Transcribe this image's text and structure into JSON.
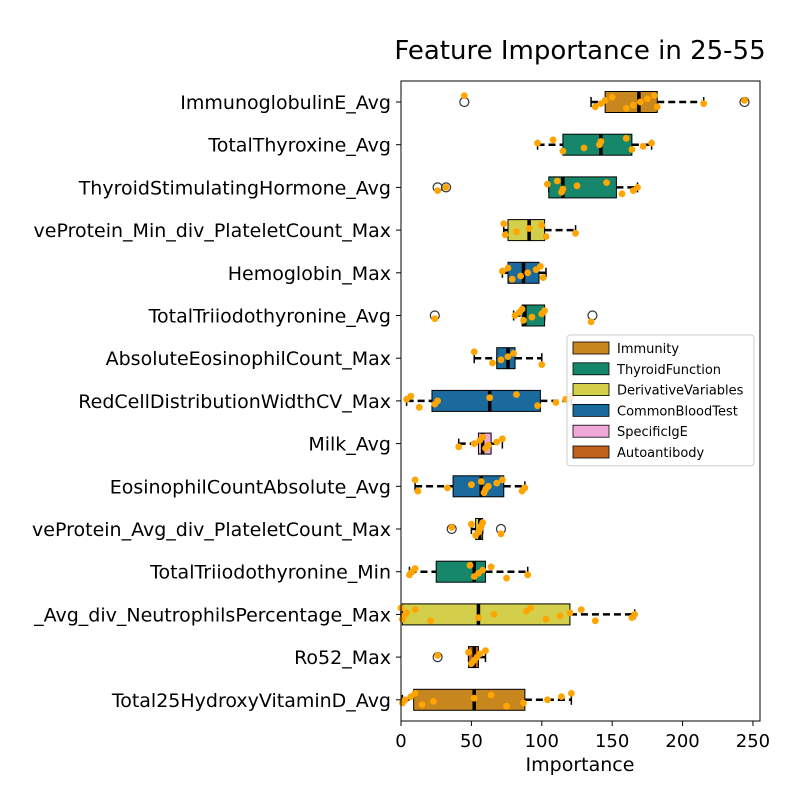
{
  "chart_data": {
    "type": "boxplot",
    "title": "Feature Importance in 25-55",
    "xlabel": "Importance",
    "xlim": [
      0,
      255
    ],
    "xticks": [
      0,
      50,
      100,
      150,
      200,
      250
    ],
    "legend": {
      "placement": "center-right",
      "entries": [
        {
          "label": "Immunity",
          "color": "#c8861f"
        },
        {
          "label": "ThyroidFunction",
          "color": "#16876a"
        },
        {
          "label": "DerivativeVariables",
          "color": "#d4cf4a"
        },
        {
          "label": "CommonBloodTest",
          "color": "#1a6a9e"
        },
        {
          "label": "SpecificIgE",
          "color": "#f0a8d8"
        },
        {
          "label": "Autoantibody",
          "color": "#c0621c"
        }
      ]
    },
    "point_color": "#ffa500",
    "features": [
      {
        "label": "ImmunoglobulinE_Avg",
        "group": "Immunity",
        "whislo": 135,
        "q1": 145,
        "med": 169,
        "q3": 182,
        "whishi": 215,
        "outliers": [
          45,
          244
        ],
        "points": [
          45,
          138,
          142,
          145,
          150,
          160,
          165,
          170,
          175,
          180,
          182,
          215,
          244
        ]
      },
      {
        "label": "TotalThyroxine_Avg",
        "group": "ThyroidFunction",
        "whislo": 97,
        "q1": 115,
        "med": 142,
        "q3": 164,
        "whishi": 178,
        "outliers": [],
        "points": [
          97,
          108,
          115,
          130,
          141,
          142,
          160,
          164,
          172,
          178
        ]
      },
      {
        "label": "ThyroidStimulatingHormone_Avg",
        "group": "ThyroidFunction",
        "whislo": 105,
        "q1": 105,
        "med": 115,
        "q3": 153,
        "whishi": 168,
        "outliers": [
          26,
          32
        ],
        "points": [
          26,
          32,
          104,
          111,
          114,
          115,
          125,
          146,
          157,
          165,
          168
        ]
      },
      {
        "label": "veProtein_Min_div_PlateletCount_Max",
        "group": "DerivativeVariables",
        "whislo": 73,
        "q1": 76,
        "med": 91,
        "q3": 102,
        "whishi": 124,
        "outliers": [],
        "points": [
          73,
          74,
          82,
          91,
          100,
          103,
          124
        ]
      },
      {
        "label": "Hemoglobin_Max",
        "group": "CommonBloodTest",
        "whislo": 72,
        "q1": 76,
        "med": 87,
        "q3": 98,
        "whishi": 103,
        "outliers": [],
        "points": [
          72,
          76,
          79,
          85,
          90,
          96,
          99,
          101
        ]
      },
      {
        "label": "TotalTriiodothyronine_Avg",
        "group": "ThyroidFunction",
        "whislo": 80,
        "q1": 86,
        "med": 88,
        "q3": 102,
        "whishi": 102,
        "outliers": [
          24,
          136
        ],
        "points": [
          24,
          81,
          84,
          86,
          87,
          93,
          100,
          102,
          135
        ]
      },
      {
        "label": "AbsoluteEosinophilCount_Max",
        "group": "CommonBloodTest",
        "whislo": 52,
        "q1": 68,
        "med": 76,
        "q3": 81,
        "whishi": 100,
        "outliers": [],
        "points": [
          52,
          65,
          71,
          76,
          80,
          100
        ]
      },
      {
        "label": "RedCellDistributionWidthCV_Max",
        "group": "CommonBloodTest",
        "whislo": 4,
        "q1": 22,
        "med": 63,
        "q3": 99,
        "whishi": 121,
        "outliers": [],
        "points": [
          4,
          7,
          13,
          24,
          26,
          63,
          82,
          97,
          110,
          117,
          121
        ]
      },
      {
        "label": "Milk_Avg",
        "group": "SpecificIgE",
        "whislo": 41,
        "q1": 55,
        "med": 58,
        "q3": 64,
        "whishi": 72,
        "outliers": [],
        "points": [
          41,
          52,
          56,
          58,
          60,
          62,
          68,
          72
        ]
      },
      {
        "label": "EosinophilCountAbsolute_Avg",
        "group": "CommonBloodTest",
        "whislo": 10,
        "q1": 37,
        "med": 57,
        "q3": 73,
        "whishi": 88,
        "outliers": [],
        "points": [
          10,
          12,
          33,
          50,
          57,
          59,
          60,
          62,
          68,
          72,
          86,
          88
        ]
      },
      {
        "label": "veProtein_Avg_div_PlateletCount_Max",
        "group": "DerivativeVariables",
        "whislo": 50,
        "q1": 53,
        "med": 56,
        "q3": 58,
        "whishi": 58,
        "outliers": [
          36,
          71
        ],
        "points": [
          36,
          50,
          53,
          55,
          56,
          57,
          58,
          71
        ]
      },
      {
        "label": "TotalTriiodothyronine_Min",
        "group": "ThyroidFunction",
        "whislo": 6,
        "q1": 25,
        "med": 52,
        "q3": 60,
        "whishi": 90,
        "outliers": [],
        "points": [
          6,
          8,
          10,
          49,
          52,
          55,
          58,
          64,
          75,
          90
        ]
      },
      {
        "label": "_Avg_div_NeutrophilsPercentage_Max",
        "group": "DerivativeVariables",
        "whislo": 0,
        "q1": 1,
        "med": 55,
        "q3": 120,
        "whishi": 166,
        "outliers": [],
        "points": [
          0,
          1,
          2,
          4,
          10,
          21,
          55,
          66,
          89,
          92,
          103,
          113,
          120,
          128,
          138,
          164,
          166
        ]
      },
      {
        "label": "Ro52_Max",
        "group": "Autoantibody",
        "whislo": 48,
        "q1": 48,
        "med": 52,
        "q3": 55,
        "whishi": 60,
        "outliers": [
          26
        ],
        "points": [
          26,
          48,
          50,
          52,
          54,
          56,
          60
        ]
      },
      {
        "label": "Total25HydroxyVitaminD_Avg",
        "group": "Immunity",
        "whislo": 1,
        "q1": 9,
        "med": 52,
        "q3": 88,
        "whishi": 121,
        "outliers": [],
        "points": [
          1,
          3,
          7,
          10,
          15,
          23,
          52,
          64,
          75,
          87,
          104,
          114,
          121
        ]
      }
    ]
  }
}
